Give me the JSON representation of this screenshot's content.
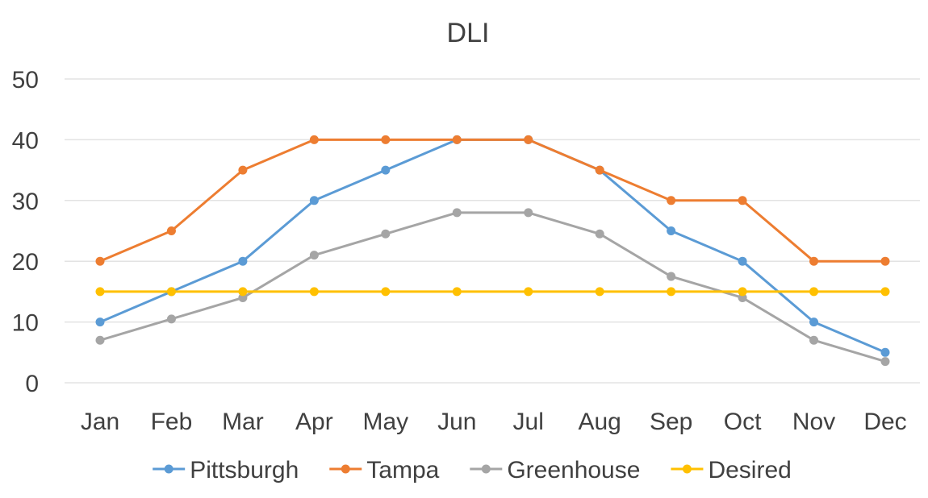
{
  "chart_data": {
    "type": "line",
    "title": "DLI",
    "xlabel": "",
    "ylabel": "",
    "categories": [
      "Jan",
      "Feb",
      "Mar",
      "Apr",
      "May",
      "Jun",
      "Jul",
      "Aug",
      "Sep",
      "Oct",
      "Nov",
      "Dec"
    ],
    "ylim": [
      0,
      50
    ],
    "yticks": [
      0,
      10,
      20,
      30,
      40,
      50
    ],
    "grid": true,
    "legend_position": "bottom",
    "series": [
      {
        "name": "Pittsburgh",
        "color": "#5b9bd5",
        "values": [
          10,
          15,
          20,
          30,
          35,
          40,
          40,
          35,
          25,
          20,
          10,
          5
        ]
      },
      {
        "name": "Tampa",
        "color": "#ed7d31",
        "values": [
          20,
          25,
          35,
          40,
          40,
          40,
          40,
          35,
          30,
          30,
          20,
          20
        ]
      },
      {
        "name": "Greenhouse",
        "color": "#a5a5a5",
        "values": [
          7,
          10.5,
          14,
          21,
          24.5,
          28,
          28,
          24.5,
          17.5,
          14,
          7,
          3.5
        ]
      },
      {
        "name": "Desired",
        "color": "#ffc000",
        "values": [
          15,
          15,
          15,
          15,
          15,
          15,
          15,
          15,
          15,
          15,
          15,
          15
        ]
      }
    ]
  }
}
